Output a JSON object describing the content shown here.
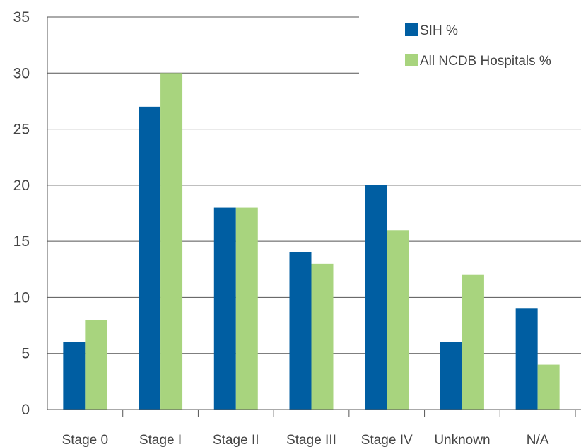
{
  "chart_data": {
    "type": "bar",
    "title": "",
    "xlabel": "",
    "ylabel": "",
    "ylim": [
      0,
      35
    ],
    "yticks": [
      0,
      5,
      10,
      15,
      20,
      25,
      30,
      35
    ],
    "grid": true,
    "legend_position": "top-right",
    "categories": [
      "Stage 0",
      "Stage I",
      "Stage II",
      "Stage III",
      "Stage IV",
      "Unknown",
      "N/A"
    ],
    "series": [
      {
        "name": "SIH %",
        "color": "#005ea2",
        "values": [
          6,
          27,
          18,
          14,
          20,
          6,
          9
        ]
      },
      {
        "name": "All NCDB Hospitals %",
        "color": "#a8d47e",
        "values": [
          8,
          30,
          18,
          13,
          16,
          12,
          4
        ]
      }
    ]
  }
}
